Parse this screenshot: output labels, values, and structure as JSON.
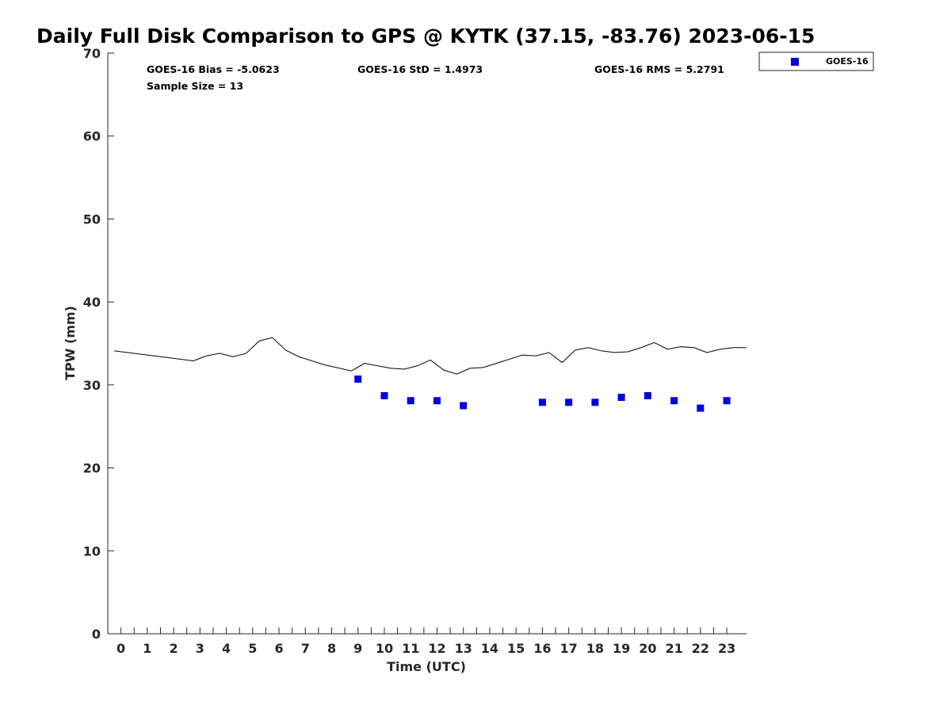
{
  "chart_data": {
    "type": "scatter",
    "title": "Daily Full Disk Comparison to GPS @ KYTK (37.15, -83.76) 2023-06-15",
    "xlabel": "Time (UTC)",
    "ylabel": "TPW (mm)",
    "xlim": [
      -0.5,
      23.75
    ],
    "ylim": [
      0,
      70
    ],
    "x_ticks": [
      0,
      1,
      2,
      3,
      4,
      5,
      6,
      7,
      8,
      9,
      10,
      11,
      12,
      13,
      14,
      15,
      16,
      17,
      18,
      19,
      20,
      21,
      22,
      23
    ],
    "y_ticks": [
      0,
      10,
      20,
      30,
      40,
      50,
      60,
      70
    ],
    "grid": false,
    "legend_position": "top-right, outside plot",
    "stats": {
      "bias": "GOES-16 Bias = -5.0623",
      "std": "GOES-16 StD = 1.4973",
      "rms": "GOES-16 RMS = 5.2791",
      "sample": "Sample Size = 13"
    },
    "series": [
      {
        "name": "GOES-16",
        "kind": "scatter",
        "color": "#0000e0",
        "marker": "square",
        "x": [
          9,
          10,
          11,
          12,
          13,
          16,
          17,
          18,
          19,
          20,
          21,
          22,
          23
        ],
        "y": [
          30.7,
          28.7,
          28.1,
          28.1,
          27.5,
          27.9,
          27.9,
          27.9,
          28.5,
          28.7,
          28.1,
          27.2,
          28.1
        ]
      },
      {
        "kind": "line",
        "color": "#000000",
        "x": [
          -0.25,
          2.75,
          3.25,
          3.75,
          4.25,
          4.75,
          5.25,
          5.75,
          6.25,
          6.75,
          7.75,
          8.75,
          9.25,
          10.25,
          10.75,
          11.25,
          11.75,
          12.25,
          12.75,
          13.25,
          13.75,
          15.25,
          15.75,
          16.25,
          16.75,
          17.25,
          17.75,
          18.25,
          18.75,
          19.25,
          19.75,
          20.25,
          20.75,
          21.25,
          21.75,
          22.25,
          22.75,
          23.25,
          23.75
        ],
        "y": [
          34.1,
          32.9,
          33.5,
          33.8,
          33.4,
          33.8,
          35.3,
          35.7,
          34.2,
          33.4,
          32.4,
          31.7,
          32.6,
          32.0,
          31.9,
          32.3,
          33.0,
          31.8,
          31.3,
          32.0,
          32.1,
          33.6,
          33.5,
          33.9,
          32.7,
          34.2,
          34.5,
          34.1,
          33.9,
          34.0,
          34.5,
          35.1,
          34.3,
          34.6,
          34.5,
          33.9,
          34.3,
          34.5,
          34.5
        ]
      }
    ]
  }
}
